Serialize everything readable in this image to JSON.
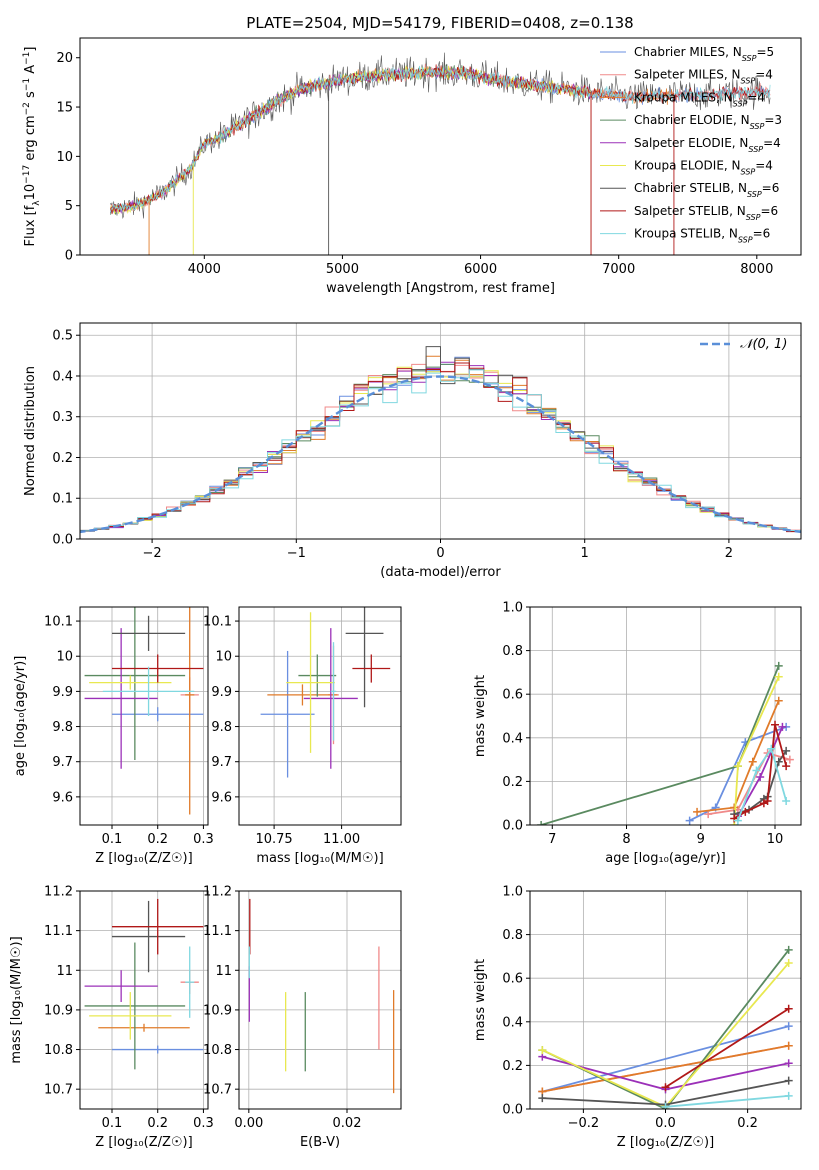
{
  "figure_title": "PLATE=2504, MJD=54179, FIBERID=0408, z=0.138",
  "palette": {
    "Chabrier MILES": "#6a8fe0",
    "Salpeter MILES": "#f08a8a",
    "Kroupa MILES": "#e07b2a",
    "Chabrier ELODIE": "#5a8a60",
    "Salpeter ELODIE": "#9b30b8",
    "Kroupa ELODIE": "#e8e850",
    "Chabrier STELIB": "#555555",
    "Salpeter STELIB": "#b01818",
    "Kroupa STELIB": "#80d8e0"
  },
  "chart_data": [
    {
      "id": "spectrum",
      "type": "line",
      "title": "PLATE=2504, MJD=54179, FIBERID=0408, z=0.138",
      "xlabel": "wavelength [Angstrom, rest frame]",
      "ylabel_parts": [
        "Flux [f",
        "λ",
        "10",
        "−17",
        " erg cm",
        "−2",
        " s",
        "−1",
        " A",
        "−1",
        "]"
      ],
      "xlim": [
        3100,
        8320
      ],
      "ylim": [
        0,
        22
      ],
      "xticks": [
        4000,
        5000,
        6000,
        7000,
        8000
      ],
      "yticks": [
        0,
        5,
        10,
        15,
        20
      ],
      "grid": false,
      "legend_position": "top-right",
      "legend": [
        {
          "name": "Chabrier MILES, N",
          "sub": "SSP",
          "suffix": "=5"
        },
        {
          "name": "Salpeter MILES, N",
          "sub": "SSP",
          "suffix": "=4"
        },
        {
          "name": "Kroupa MILES, N",
          "sub": "SSP",
          "suffix": "=4"
        },
        {
          "name": "Chabrier ELODIE, N",
          "sub": "SSP",
          "suffix": "=3"
        },
        {
          "name": "Salpeter ELODIE, N",
          "sub": "SSP",
          "suffix": "=4"
        },
        {
          "name": "Kroupa ELODIE, N",
          "sub": "SSP",
          "suffix": "=4"
        },
        {
          "name": "Chabrier STELIB, N",
          "sub": "SSP",
          "suffix": "=6"
        },
        {
          "name": "Salpeter STELIB, N",
          "sub": "SSP",
          "suffix": "=6"
        },
        {
          "name": "Kroupa STELIB, N",
          "sub": "SSP",
          "suffix": "=6"
        }
      ],
      "continuum": {
        "wavelength": [
          3320,
          3500,
          3700,
          3900,
          4000,
          4100,
          4300,
          4500,
          4700,
          5000,
          5300,
          5600,
          5900,
          6200,
          6500,
          6800,
          7100,
          7400,
          7700,
          8000,
          8100
        ],
        "flux": [
          4.6,
          5.0,
          6.3,
          8.8,
          11.3,
          11.8,
          13.6,
          15.4,
          16.8,
          17.8,
          18.3,
          18.5,
          18.4,
          17.6,
          17.0,
          16.5,
          16.0,
          16.2,
          16.3,
          16.6,
          16.5
        ]
      }
    },
    {
      "id": "residuals",
      "type": "step",
      "xlabel": "(data-model)/error",
      "ylabel": "Normed distribution",
      "xlim": [
        -2.5,
        2.5
      ],
      "ylim": [
        0,
        0.53
      ],
      "xticks": [
        -2,
        -1,
        0,
        1,
        2
      ],
      "xtick_labels": [
        "−2",
        "−1",
        "0",
        "1",
        "2"
      ],
      "yticks": [
        0.0,
        0.1,
        0.2,
        0.3,
        0.4,
        0.5
      ],
      "ytick_labels": [
        "0.0",
        "0.1",
        "0.2",
        "0.3",
        "0.4",
        "0.5"
      ],
      "grid": true,
      "legend_position": "top-right",
      "legend": "𝒩(0, 1)",
      "reference_curve": {
        "name": "𝒩(0, 1)",
        "mean": 0,
        "sigma": 1,
        "color": "#5a8fd8"
      },
      "bin_width": 0.1
    },
    {
      "id": "age_vs_Z",
      "type": "errorbar",
      "xlabel": "Z [log₁₀(Z/Z☉)]",
      "ylabel": "age  [log₁₀(age/yr)]",
      "xlim": [
        0.03,
        0.31
      ],
      "ylim": [
        9.52,
        10.14
      ],
      "xticks": [
        0.1,
        0.2,
        0.3
      ],
      "yticks": [
        9.6,
        9.7,
        9.8,
        9.9,
        10.0,
        10.1
      ],
      "grid": true,
      "points": [
        {
          "model": "Chabrier MILES",
          "x": 0.2,
          "xerr": 0.1,
          "y": 9.835,
          "yerr": 0.02
        },
        {
          "model": "Salpeter MILES",
          "x": 0.27,
          "xerr": 0.02,
          "y": 9.89,
          "yerr": 0.05
        },
        {
          "model": "Kroupa MILES",
          "x": 0.27,
          "xerr": 0.01,
          "y": 9.89,
          "yerr": 0.34
        },
        {
          "model": "Chabrier ELODIE",
          "x": 0.15,
          "xerr": 0.11,
          "y": 9.945,
          "yerr": 0.24
        },
        {
          "model": "Salpeter ELODIE",
          "x": 0.12,
          "xerr": 0.08,
          "y": 9.88,
          "yerr": 0.2
        },
        {
          "model": "Kroupa ELODIE",
          "x": 0.14,
          "xerr": 0.09,
          "y": 9.925,
          "yerr": 0.02
        },
        {
          "model": "Chabrier STELIB",
          "x": 0.18,
          "xerr": 0.08,
          "y": 10.065,
          "yerr": 0.05
        },
        {
          "model": "Salpeter STELIB",
          "x": 0.2,
          "xerr": 0.1,
          "y": 9.965,
          "yerr": 0.04
        },
        {
          "model": "Kroupa STELIB",
          "x": 0.18,
          "xerr": 0.1,
          "y": 9.9,
          "yerr": 0.07
        }
      ]
    },
    {
      "id": "age_vs_mass",
      "type": "errorbar",
      "xlabel": "mass [log₁₀(M/M☉)]",
      "ylabel": "",
      "xlim": [
        10.62,
        11.22
      ],
      "ylim": [
        9.52,
        10.14
      ],
      "xticks": [
        10.75,
        11.0
      ],
      "xtick_labels": [
        "10.75",
        "11.00"
      ],
      "yticks": [
        9.6,
        9.7,
        9.8,
        9.9,
        10.0,
        10.1
      ],
      "grid": true,
      "points": [
        {
          "model": "Chabrier MILES",
          "x": 10.8,
          "xerr": 0.1,
          "y": 9.835,
          "yerr": 0.18
        },
        {
          "model": "Salpeter MILES",
          "x": 10.97,
          "xerr": 0.02,
          "y": 9.89,
          "yerr": 0.14
        },
        {
          "model": "Kroupa MILES",
          "x": 10.855,
          "xerr": 0.13,
          "y": 9.89,
          "yerr": 0.03
        },
        {
          "model": "Chabrier ELODIE",
          "x": 10.91,
          "xerr": 0.07,
          "y": 9.945,
          "yerr": 0.06
        },
        {
          "model": "Salpeter ELODIE",
          "x": 10.96,
          "xerr": 0.1,
          "y": 9.88,
          "yerr": 0.2
        },
        {
          "model": "Kroupa ELODIE",
          "x": 10.885,
          "xerr": 0.09,
          "y": 9.925,
          "yerr": 0.2
        },
        {
          "model": "Chabrier STELIB",
          "x": 11.085,
          "xerr": 0.07,
          "y": 10.065,
          "yerr": 0.21
        },
        {
          "model": "Salpeter STELIB",
          "x": 11.11,
          "xerr": 0.07,
          "y": 9.965,
          "yerr": 0.04
        },
        {
          "model": "Kroupa STELIB",
          "x": 10.97,
          "xerr": 0.01,
          "y": 9.9,
          "yerr": 0.14
        }
      ]
    },
    {
      "id": "mass_weight_vs_age",
      "type": "line",
      "xlabel": "age  [log₁₀(age/yr)]",
      "ylabel": "mass weight",
      "xlim": [
        6.7,
        10.35
      ],
      "ylim": [
        0,
        1
      ],
      "xticks": [
        7,
        8,
        9,
        10
      ],
      "yticks": [
        0.0,
        0.2,
        0.4,
        0.6,
        0.8,
        1.0
      ],
      "ytick_labels": [
        "0.0",
        "0.2",
        "0.4",
        "0.6",
        "0.8",
        "1.0"
      ],
      "grid": true,
      "series": [
        {
          "model": "Chabrier MILES",
          "x": [
            8.85,
            9.2,
            9.6,
            10.15
          ],
          "y": [
            0.02,
            0.08,
            0.38,
            0.45
          ]
        },
        {
          "model": "Salpeter MILES",
          "x": [
            9.1,
            9.5,
            9.9,
            10.2
          ],
          "y": [
            0.05,
            0.07,
            0.33,
            0.3
          ]
        },
        {
          "model": "Kroupa MILES",
          "x": [
            8.95,
            9.45,
            9.7,
            10.05
          ],
          "y": [
            0.06,
            0.08,
            0.29,
            0.57
          ]
        },
        {
          "model": "Chabrier ELODIE",
          "x": [
            6.85,
            9.5,
            10.05
          ],
          "y": [
            0.0,
            0.27,
            0.73
          ]
        },
        {
          "model": "Salpeter ELODIE",
          "x": [
            9.5,
            9.8,
            10.1
          ],
          "y": [
            0.04,
            0.22,
            0.45
          ]
        },
        {
          "model": "Kroupa ELODIE",
          "x": [
            9.45,
            9.5,
            10.05
          ],
          "y": [
            0.0,
            0.27,
            0.68
          ]
        },
        {
          "model": "Chabrier STELIB",
          "x": [
            9.45,
            9.65,
            9.85,
            9.9,
            10.05,
            10.15
          ],
          "y": [
            0.05,
            0.07,
            0.12,
            0.13,
            0.29,
            0.34
          ]
        },
        {
          "model": "Salpeter STELIB",
          "x": [
            9.45,
            9.6,
            9.85,
            9.9,
            10.0,
            10.15
          ],
          "y": [
            0.03,
            0.06,
            0.1,
            0.11,
            0.46,
            0.27
          ]
        },
        {
          "model": "Kroupa STELIB",
          "x": [
            9.5,
            9.75,
            9.95,
            10.15
          ],
          "y": [
            0.02,
            0.25,
            0.35,
            0.11
          ]
        }
      ]
    },
    {
      "id": "mass_vs_Z",
      "type": "errorbar",
      "xlabel": "Z [log₁₀(Z/Z☉)]",
      "ylabel": "mass [log₁₀(M/M☉)]",
      "xlim": [
        0.03,
        0.31
      ],
      "ylim": [
        10.65,
        11.2
      ],
      "xticks": [
        0.1,
        0.2,
        0.3
      ],
      "yticks": [
        10.7,
        10.8,
        10.9,
        11.0,
        11.1,
        11.2
      ],
      "grid": true,
      "points": [
        {
          "model": "Chabrier MILES",
          "x": 0.2,
          "xerr": 0.1,
          "y": 10.8,
          "yerr": 0.01
        },
        {
          "model": "Salpeter MILES",
          "x": 0.27,
          "xerr": 0.02,
          "y": 10.97,
          "yerr": 0.03
        },
        {
          "model": "Kroupa MILES",
          "x": 0.17,
          "xerr": 0.1,
          "y": 10.855,
          "yerr": 0.01
        },
        {
          "model": "Chabrier ELODIE",
          "x": 0.15,
          "xerr": 0.11,
          "y": 10.91,
          "yerr": 0.16
        },
        {
          "model": "Salpeter ELODIE",
          "x": 0.12,
          "xerr": 0.08,
          "y": 10.96,
          "yerr": 0.04
        },
        {
          "model": "Kroupa ELODIE",
          "x": 0.14,
          "xerr": 0.09,
          "y": 10.885,
          "yerr": 0.06
        },
        {
          "model": "Chabrier STELIB",
          "x": 0.18,
          "xerr": 0.08,
          "y": 11.085,
          "yerr": 0.09
        },
        {
          "model": "Salpeter STELIB",
          "x": 0.2,
          "xerr": 0.1,
          "y": 11.11,
          "yerr": 0.07
        },
        {
          "model": "Kroupa STELIB",
          "x": 0.27,
          "xerr": 0.01,
          "y": 10.97,
          "yerr": 0.09
        }
      ]
    },
    {
      "id": "mass_vs_ebv",
      "type": "errorbar",
      "xlabel": "E(B-V)",
      "ylabel": "",
      "xlim": [
        -0.002,
        0.031
      ],
      "ylim": [
        10.65,
        11.2
      ],
      "xticks": [
        0.0,
        0.02
      ],
      "xtick_labels": [
        "0.00",
        "0.02"
      ],
      "yticks": [
        10.7,
        10.8,
        10.9,
        11.0,
        11.1,
        11.2
      ],
      "grid": true,
      "points": [
        {
          "model": "Kroupa MILES",
          "x": 0.0295,
          "y": 10.82,
          "yerr": 0.13
        },
        {
          "model": "Salpeter MILES",
          "x": 0.0265,
          "y": 10.93,
          "yerr": 0.13
        },
        {
          "model": "Chabrier ELODIE",
          "x": 0.0115,
          "y": 10.845,
          "yerr": 0.1
        },
        {
          "model": "Kroupa ELODIE",
          "x": 0.0075,
          "y": 10.845,
          "yerr": 0.1
        },
        {
          "model": "Salpeter ELODIE",
          "x": 0.0001,
          "y": 10.94,
          "yerr": 0.07
        },
        {
          "model": "Salpeter STELIB",
          "x": 0.0002,
          "y": 11.11,
          "yerr": 0.07
        },
        {
          "model": "Kroupa STELIB",
          "x": 0.0001,
          "y": 11.02,
          "yerr": 0.04
        }
      ]
    },
    {
      "id": "mass_weight_vs_Z",
      "type": "line",
      "xlabel": "Z [log₁₀(Z/Z☉)]",
      "ylabel": "mass weight",
      "xlim": [
        -0.33,
        0.33
      ],
      "ylim": [
        0,
        1
      ],
      "xticks": [
        -0.2,
        0.0,
        0.2
      ],
      "xtick_labels": [
        "−0.2",
        "0.0",
        "0.2"
      ],
      "yticks": [
        0.0,
        0.2,
        0.4,
        0.6,
        0.8,
        1.0
      ],
      "ytick_labels": [
        "0.0",
        "0.2",
        "0.4",
        "0.6",
        "0.8",
        "1.0"
      ],
      "grid": true,
      "series": [
        {
          "model": "Chabrier MILES",
          "x": [
            -0.3,
            0.3
          ],
          "y": [
            0.08,
            0.38
          ]
        },
        {
          "model": "Salpeter MILES",
          "x": [
            -0.3,
            0.3
          ],
          "y": [
            0.08,
            0.29
          ]
        },
        {
          "model": "Kroupa MILES",
          "x": [
            -0.3,
            0.3
          ],
          "y": [
            0.08,
            0.29
          ]
        },
        {
          "model": "Chabrier ELODIE",
          "x": [
            -0.3,
            0.0,
            0.3
          ],
          "y": [
            0.27,
            0.0,
            0.73
          ]
        },
        {
          "model": "Salpeter ELODIE",
          "x": [
            -0.3,
            0.0,
            0.3
          ],
          "y": [
            0.24,
            0.09,
            0.21
          ]
        },
        {
          "model": "Kroupa ELODIE",
          "x": [
            -0.3,
            0.0,
            0.3
          ],
          "y": [
            0.27,
            0.01,
            0.67
          ]
        },
        {
          "model": "Chabrier STELIB",
          "x": [
            -0.3,
            0.0,
            0.3
          ],
          "y": [
            0.05,
            0.02,
            0.13
          ]
        },
        {
          "model": "Salpeter STELIB",
          "x": [
            0.0,
            0.3
          ],
          "y": [
            0.1,
            0.46
          ]
        },
        {
          "model": "Kroupa STELIB",
          "x": [
            0.0,
            0.3
          ],
          "y": [
            0.01,
            0.06
          ]
        }
      ]
    }
  ]
}
